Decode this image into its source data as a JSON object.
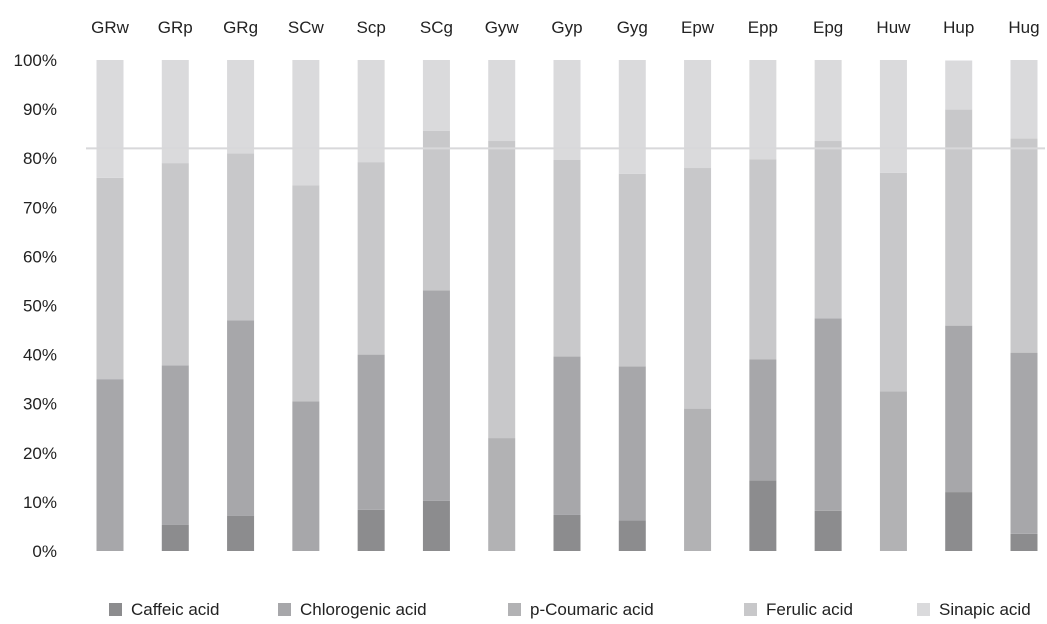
{
  "chart_data": {
    "type": "bar",
    "stacked": true,
    "orientation": "vertical",
    "category_axis_position": "top",
    "categories": [
      "GRw",
      "GRp",
      "GRg",
      "SCw",
      "Scp",
      "SCg",
      "Gyw",
      "Gyp",
      "Gyg",
      "Epw",
      "Epp",
      "Epg",
      "Huw",
      "Hup",
      "Hug"
    ],
    "ylim": [
      0,
      100
    ],
    "yticks": [
      "0%",
      "10%",
      "20%",
      "30%",
      "40%",
      "50%",
      "60%",
      "70%",
      "80%",
      "90%",
      "100%"
    ],
    "reference_line": 82,
    "legend_position": "bottom",
    "series": [
      {
        "name": "Caffeic acid",
        "color": "#8c8c8e",
        "values": [
          0,
          5.3,
          7.2,
          0,
          8.4,
          10.2,
          0,
          7.4,
          6.2,
          0,
          14.4,
          8.2,
          0,
          12,
          3.5
        ]
      },
      {
        "name": "Chlorogenic acid",
        "color": "#a7a7aa",
        "values": [
          35,
          32.5,
          39.8,
          30.5,
          31.6,
          42.9,
          0,
          32.2,
          31.4,
          0,
          24.6,
          39.2,
          0,
          33.9,
          36.9
        ]
      },
      {
        "name": "p-Coumaric acid",
        "color": "#b2b2b4",
        "values": [
          0,
          0,
          0,
          0,
          0,
          0,
          23,
          0,
          0,
          29,
          0,
          0,
          32.5,
          0,
          0
        ]
      },
      {
        "name": "Ferulic acid",
        "color": "#c8c8ca",
        "values": [
          41,
          41.2,
          34,
          44,
          39.2,
          32.5,
          60.5,
          40.1,
          39.2,
          49,
          40.8,
          36.1,
          44.5,
          44,
          43.6
        ]
      },
      {
        "name": "Sinapic acid",
        "color": "#dadadc",
        "values": [
          24,
          21,
          19,
          25.5,
          20.8,
          14.4,
          16.5,
          20.3,
          23.2,
          22,
          20.2,
          16.5,
          23,
          10,
          16
        ]
      }
    ]
  }
}
